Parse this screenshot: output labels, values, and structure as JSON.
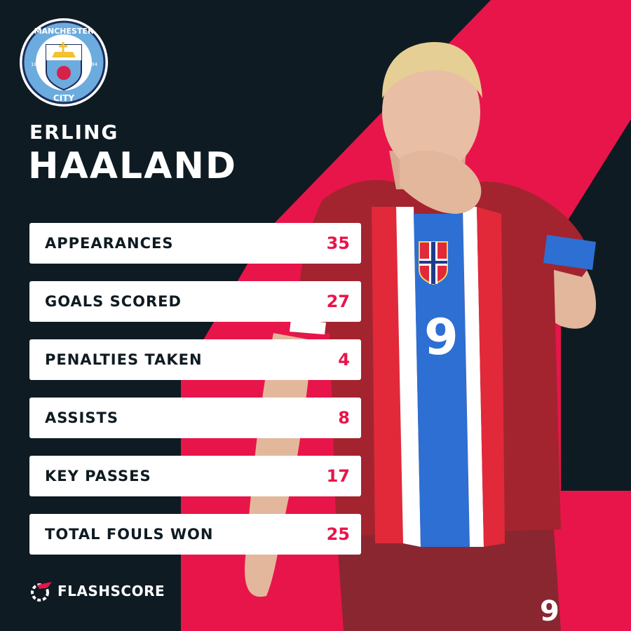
{
  "club": {
    "badge_top": "MANCHESTER",
    "badge_bottom": "CITY",
    "badge_year_left": "18",
    "badge_year_right": "94",
    "icon": "manchester-city-crest"
  },
  "player": {
    "first_name": "ERLING",
    "last_name": "HAALAND",
    "shirt_number": "9"
  },
  "stats": [
    {
      "label": "APPEARANCES",
      "value": "35"
    },
    {
      "label": "GOALS SCORED",
      "value": "27"
    },
    {
      "label": "PENALTIES TAKEN",
      "value": "4"
    },
    {
      "label": "ASSISTS",
      "value": "8"
    },
    {
      "label": "KEY PASSES",
      "value": "17"
    },
    {
      "label": "TOTAL FOULS WON",
      "value": "25"
    }
  ],
  "brand": {
    "name": "FLASHSCORE",
    "icon": "flashscore-logo-icon"
  },
  "colors": {
    "background": "#0f1b22",
    "accent": "#e8154a",
    "card": "#ffffff"
  }
}
